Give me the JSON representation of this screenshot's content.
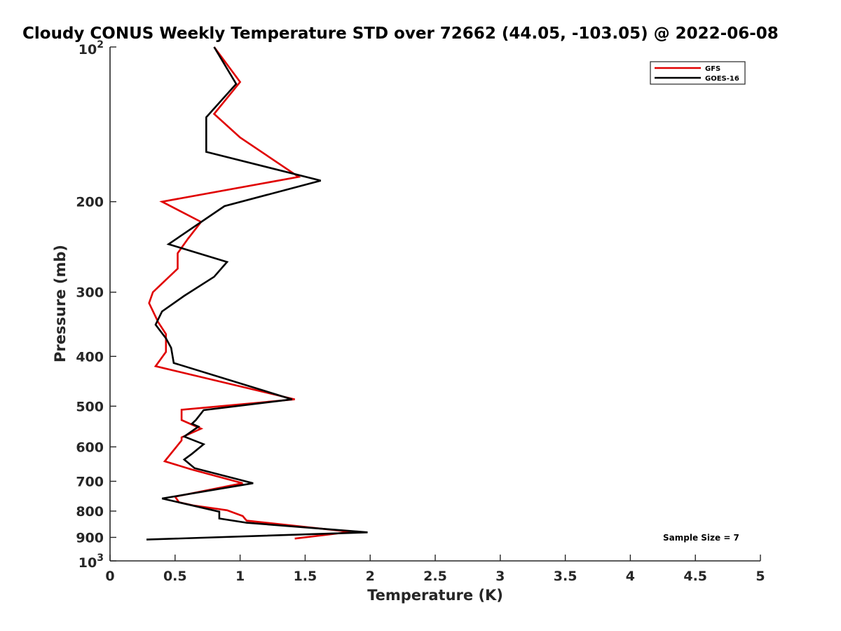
{
  "chart_data": {
    "type": "line",
    "title": "Cloudy CONUS Weekly Temperature STD over 72662 (44.05, -103.05) @ 2022-06-08",
    "xlabel": "Temperature (K)",
    "ylabel": "Pressure (mb)",
    "xlim": [
      0,
      5
    ],
    "ylim": [
      100,
      1000
    ],
    "y_scale": "log",
    "y_reversed": true,
    "grid": false,
    "legend_position": "top-right",
    "x_ticks": [
      "0",
      "0.5",
      "1",
      "1.5",
      "2",
      "2.5",
      "3",
      "3.5",
      "4",
      "4.5",
      "5"
    ],
    "x_tick_values": [
      0,
      0.5,
      1,
      1.5,
      2,
      2.5,
      3,
      3.5,
      4,
      4.5,
      5
    ],
    "y_ticks": [
      {
        "value": 100,
        "base": "10",
        "exp": "2"
      },
      {
        "value": 200,
        "label": "200"
      },
      {
        "value": 300,
        "label": "300"
      },
      {
        "value": 400,
        "label": "400"
      },
      {
        "value": 500,
        "label": "500"
      },
      {
        "value": 600,
        "label": "600"
      },
      {
        "value": 700,
        "label": "700"
      },
      {
        "value": 800,
        "label": "800"
      },
      {
        "value": 900,
        "label": "900"
      },
      {
        "value": 1000,
        "base": "10",
        "exp": "3"
      }
    ],
    "series": [
      {
        "name": "GFS",
        "color": "#e00000",
        "points": [
          [
            0.8,
            100
          ],
          [
            1.0,
            117
          ],
          [
            0.8,
            135
          ],
          [
            1.0,
            150
          ],
          [
            1.45,
            179
          ],
          [
            0.4,
            200
          ],
          [
            0.7,
            219
          ],
          [
            0.6,
            236
          ],
          [
            0.52,
            252
          ],
          [
            0.52,
            270
          ],
          [
            0.33,
            300
          ],
          [
            0.3,
            315
          ],
          [
            0.37,
            343
          ],
          [
            0.43,
            362
          ],
          [
            0.43,
            392
          ],
          [
            0.35,
            418
          ],
          [
            1.42,
            485
          ],
          [
            0.55,
            508
          ],
          [
            0.55,
            532
          ],
          [
            0.7,
            553
          ],
          [
            0.55,
            575
          ],
          [
            0.55,
            583
          ],
          [
            0.42,
            640
          ],
          [
            0.62,
            663
          ],
          [
            1.02,
            706
          ],
          [
            0.5,
            750
          ],
          [
            0.53,
            769
          ],
          [
            0.64,
            780
          ],
          [
            0.9,
            797
          ],
          [
            1.02,
            818
          ],
          [
            1.05,
            835
          ],
          [
            1.85,
            878
          ],
          [
            1.42,
            905
          ]
        ]
      },
      {
        "name": "GOES-16",
        "color": "#000000",
        "points": [
          [
            0.8,
            100
          ],
          [
            0.97,
            118
          ],
          [
            0.74,
            137
          ],
          [
            0.74,
            160
          ],
          [
            1.62,
            182
          ],
          [
            0.88,
            204
          ],
          [
            0.45,
            242
          ],
          [
            0.9,
            262
          ],
          [
            0.8,
            280
          ],
          [
            0.57,
            305
          ],
          [
            0.4,
            327
          ],
          [
            0.35,
            347
          ],
          [
            0.43,
            369
          ],
          [
            0.47,
            385
          ],
          [
            0.49,
            412
          ],
          [
            1.4,
            485
          ],
          [
            0.72,
            509
          ],
          [
            0.66,
            532
          ],
          [
            0.63,
            541
          ],
          [
            0.68,
            548
          ],
          [
            0.57,
            573
          ],
          [
            0.72,
            593
          ],
          [
            0.63,
            619
          ],
          [
            0.57,
            635
          ],
          [
            0.65,
            660
          ],
          [
            1.1,
            706
          ],
          [
            0.4,
            756
          ],
          [
            0.84,
            802
          ],
          [
            0.84,
            827
          ],
          [
            1.05,
            843
          ],
          [
            1.98,
            880
          ],
          [
            0.28,
            909
          ]
        ]
      }
    ],
    "annotation": "Sample Size = 7"
  }
}
